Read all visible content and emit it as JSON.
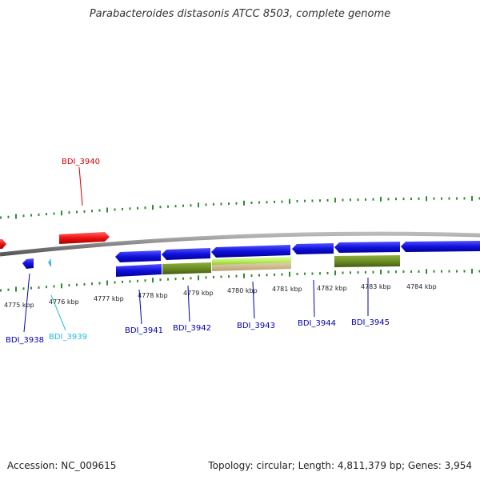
{
  "title": "Parabacteroides distasonis ATCC 8503, complete genome",
  "footer": {
    "accession": "Accession: NC_009615",
    "topology": "Topology: circular; Length: 4,811,379 bp; Genes: 3,954"
  },
  "colors": {
    "forward_gene": "#ee1111",
    "reverse_gene": "#1111dd",
    "light_gene": "#44bbee",
    "green_dark": "#6b8e23",
    "green_light": "#b8f060",
    "backbone": "#888888",
    "tick": "#2e8b2e"
  },
  "scale_labels": [
    "4775 kbp",
    "4776 kbp",
    "4777 kbp",
    "4778 kbp",
    "4779 kbp",
    "4780 kbp",
    "4781 kbp",
    "4782 kbp",
    "4783 kbp",
    "4784 kbp"
  ],
  "gene_labels": [
    {
      "name": "BDI_3940",
      "color": "#cc0000"
    },
    {
      "name": "BDI_3938",
      "color": "#0000aa"
    },
    {
      "name": "BDI_3939",
      "color": "#22bbdd"
    },
    {
      "name": "BDI_3941",
      "color": "#0000aa"
    },
    {
      "name": "BDI_3942",
      "color": "#0000aa"
    },
    {
      "name": "BDI_3943",
      "color": "#0000aa"
    },
    {
      "name": "BDI_3944",
      "color": "#0000aa"
    },
    {
      "name": "BDI_3945",
      "color": "#0000aa"
    }
  ]
}
